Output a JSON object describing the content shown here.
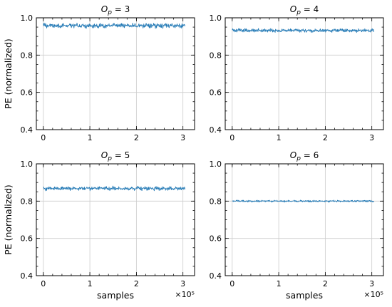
{
  "chart_data": [
    {
      "type": "line",
      "title": "O_p = 3",
      "title_symbol": "O",
      "title_sub": "p",
      "title_rhs": " = 3",
      "ylabel": "PE (normalized)",
      "xlabel": "",
      "x_multiplier": "",
      "xlim": [
        -0.15,
        3.25
      ],
      "ylim": [
        0.4,
        1.0
      ],
      "xticks": [
        0,
        1,
        2,
        3
      ],
      "yticks": [
        0.4,
        0.6,
        0.8,
        1.0
      ],
      "xtick_labels": [
        "0",
        "1",
        "2",
        "3"
      ],
      "ytick_labels": [
        "0.4",
        "0.6",
        "0.8",
        "1.0"
      ],
      "grid": true,
      "series": [
        {
          "x_range": [
            0,
            3.05
          ],
          "mean": 0.958,
          "amplitude": 0.012,
          "color": "#1f77b4"
        }
      ]
    },
    {
      "type": "line",
      "title": "O_p = 4",
      "title_symbol": "O",
      "title_sub": "p",
      "title_rhs": " = 4",
      "ylabel": "",
      "xlabel": "",
      "x_multiplier": "",
      "xlim": [
        -0.15,
        3.25
      ],
      "ylim": [
        0.4,
        1.0
      ],
      "xticks": [
        0,
        1,
        2,
        3
      ],
      "yticks": [
        0.4,
        0.6,
        0.8,
        1.0
      ],
      "xtick_labels": [
        "0",
        "1",
        "2",
        "3"
      ],
      "ytick_labels": [
        "0.4",
        "0.6",
        "0.8",
        "1.0"
      ],
      "grid": true,
      "series": [
        {
          "x_range": [
            0,
            3.05
          ],
          "mean": 0.932,
          "amplitude": 0.009,
          "color": "#1f77b4"
        }
      ]
    },
    {
      "type": "line",
      "title": "O_p = 5",
      "title_symbol": "O",
      "title_sub": "p",
      "title_rhs": " = 5",
      "ylabel": "PE (normalized)",
      "xlabel": "samples",
      "x_multiplier": "×10⁵",
      "xlim": [
        -0.15,
        3.25
      ],
      "ylim": [
        0.4,
        1.0
      ],
      "xticks": [
        0,
        1,
        2,
        3
      ],
      "yticks": [
        0.4,
        0.6,
        0.8,
        1.0
      ],
      "xtick_labels": [
        "0",
        "1",
        "2",
        "3"
      ],
      "ytick_labels": [
        "0.4",
        "0.6",
        "0.8",
        "1.0"
      ],
      "grid": true,
      "series": [
        {
          "x_range": [
            0,
            3.05
          ],
          "mean": 0.868,
          "amplitude": 0.01,
          "color": "#1f77b4"
        }
      ]
    },
    {
      "type": "line",
      "title": "O_p = 6",
      "title_symbol": "O",
      "title_sub": "p",
      "title_rhs": " = 6",
      "ylabel": "",
      "xlabel": "samples",
      "x_multiplier": "×10⁵",
      "xlim": [
        -0.15,
        3.25
      ],
      "ylim": [
        0.4,
        1.0
      ],
      "xticks": [
        0,
        1,
        2,
        3
      ],
      "yticks": [
        0.4,
        0.6,
        0.8,
        1.0
      ],
      "xtick_labels": [
        "0",
        "1",
        "2",
        "3"
      ],
      "ytick_labels": [
        "0.4",
        "0.6",
        "0.8",
        "1.0"
      ],
      "grid": true,
      "series": [
        {
          "x_range": [
            0,
            3.05
          ],
          "mean": 0.8,
          "amplitude": 0.005,
          "color": "#1f77b4"
        }
      ]
    }
  ]
}
